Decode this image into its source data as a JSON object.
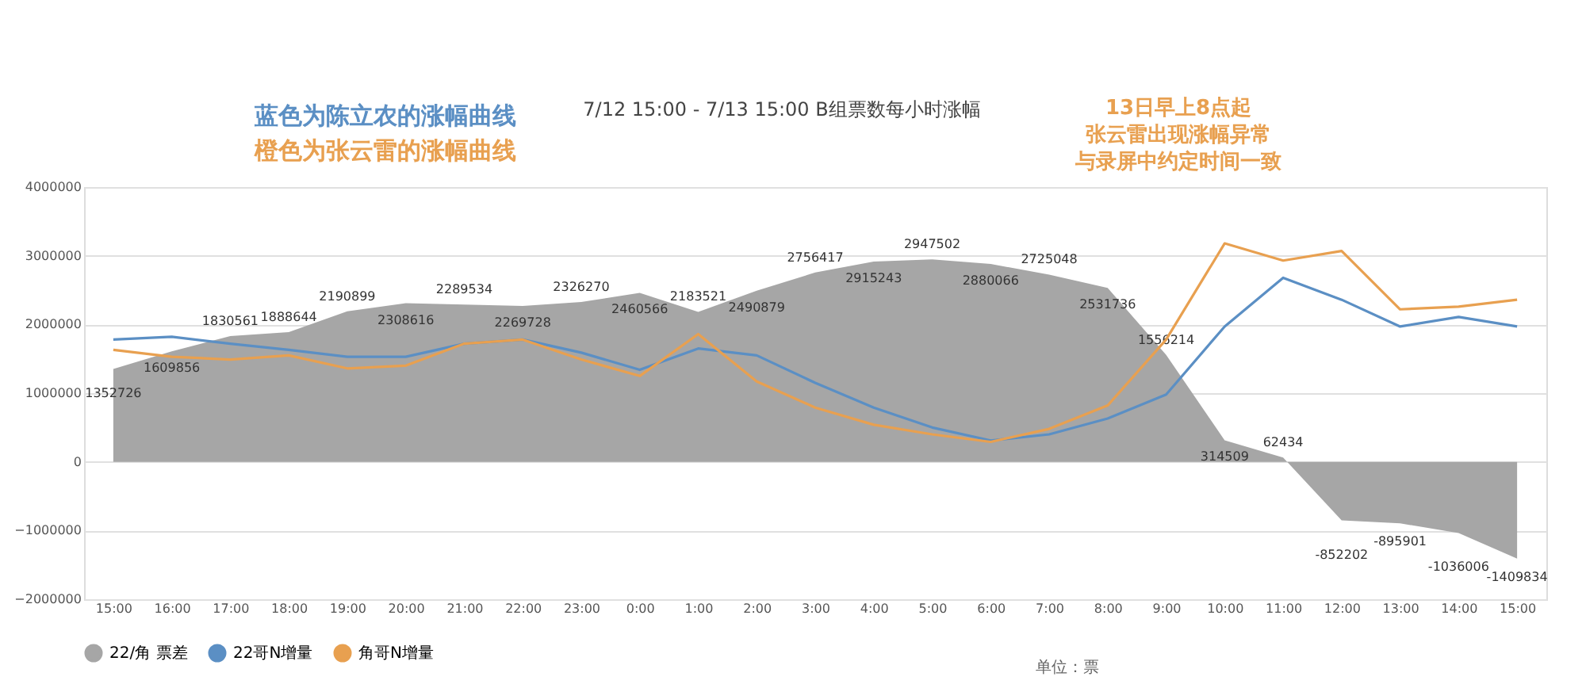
{
  "chart_data": {
    "type": "line",
    "title": "7/12 15:00 - 7/13 15:00 B组票数每小时涨幅",
    "categories": [
      "15:00",
      "16:00",
      "17:00",
      "18:00",
      "19:00",
      "20:00",
      "21:00",
      "22:00",
      "23:00",
      "0:00",
      "1:00",
      "2:00",
      "3:00",
      "4:00",
      "5:00",
      "6:00",
      "7:00",
      "8:00",
      "9:00",
      "10:00",
      "11:00",
      "12:00",
      "13:00",
      "14:00",
      "15:00"
    ],
    "series": [
      {
        "name": "22/角 票差",
        "type": "area",
        "color": "#a6a6a6",
        "values": [
          1352726,
          1609856,
          1830561,
          1888644,
          2190899,
          2308616,
          2289534,
          2269728,
          2326270,
          2460566,
          2183521,
          2490879,
          2756417,
          2915243,
          2947502,
          2880066,
          2725048,
          2531736,
          1556214,
          314509,
          62434,
          -852202,
          -895901,
          -1036006,
          -1409834
        ],
        "value_labels": [
          "1352726",
          "1609856",
          "1830561",
          "1888644",
          "2190899",
          "2308616",
          "2289534",
          "2269728",
          "2326270",
          "2460566",
          "2183521",
          "2490879",
          "2756417",
          "2915243",
          "2947502",
          "2880066",
          "2725048",
          "2531736",
          "1556214",
          "314509",
          "62434",
          "-852202",
          "-895901",
          "-1036006",
          "-1409834"
        ]
      },
      {
        "name": "22哥N增量",
        "color": "#5b8fc4",
        "values": [
          1780000,
          1820000,
          1720000,
          1630000,
          1530000,
          1530000,
          1720000,
          1780000,
          1590000,
          1340000,
          1650000,
          1550000,
          1150000,
          790000,
          500000,
          310000,
          400000,
          630000,
          980000,
          1970000,
          2680000,
          2360000,
          1970000,
          2110000,
          1970000
        ]
      },
      {
        "name": "角哥N增量",
        "color": "#e8a050",
        "values": [
          1630000,
          1530000,
          1490000,
          1550000,
          1360000,
          1400000,
          1720000,
          1780000,
          1490000,
          1250000,
          1860000,
          1170000,
          790000,
          540000,
          400000,
          290000,
          480000,
          820000,
          1780000,
          3180000,
          2930000,
          3070000,
          2220000,
          2260000,
          2360000
        ]
      }
    ],
    "ylim": [
      -2000000,
      4000000
    ],
    "yticks": [
      -2000000,
      -1000000,
      0,
      1000000,
      2000000,
      3000000,
      4000000
    ],
    "grid": "y",
    "legend": "bottom",
    "annotations": [
      "蓝色为陈立农的涨幅曲线",
      "橙色为张云雷的涨幅曲线",
      "13日早上8点起",
      "张云雷出现涨幅异常",
      "与录屏中约定时间一致",
      "单位：票"
    ]
  }
}
